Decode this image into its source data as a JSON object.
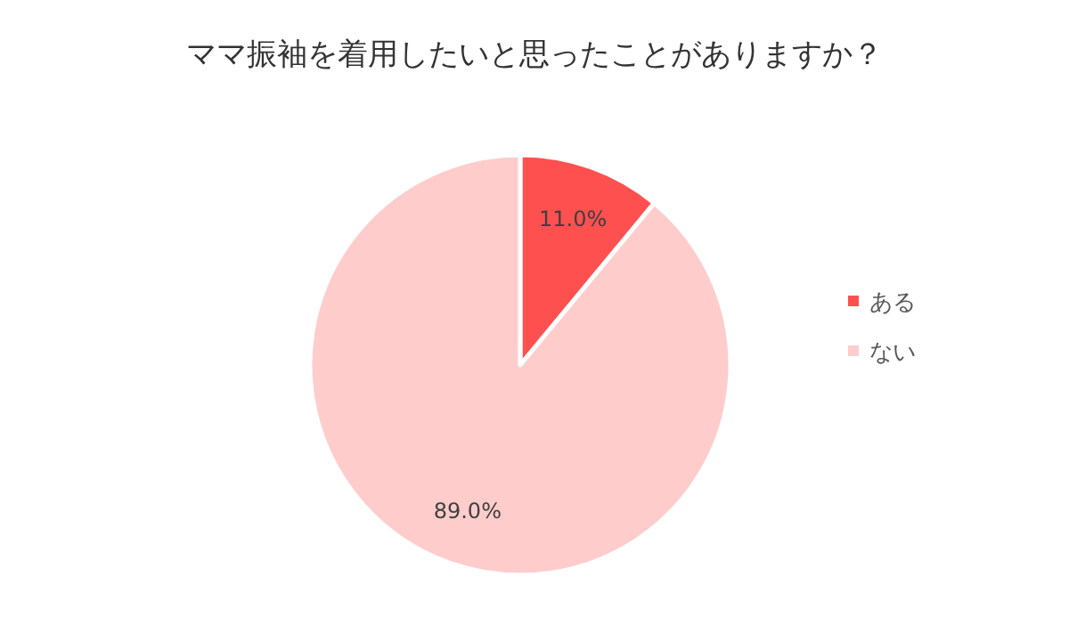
{
  "chart_data": {
    "type": "pie",
    "title": "ママ振袖を着用したいと思ったことがありますか？",
    "categories": [
      "ある",
      "ない"
    ],
    "values": [
      11.0,
      89.0
    ],
    "colors": [
      "#ff5050",
      "#ffcccc"
    ],
    "value_labels": [
      "11.0%",
      "89.0%"
    ],
    "legend": "right"
  }
}
